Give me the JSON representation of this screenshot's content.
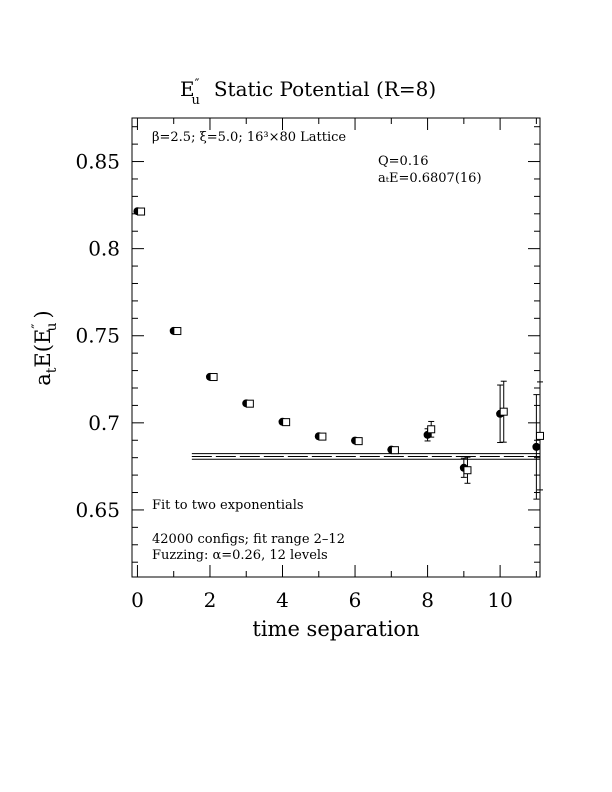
{
  "chart_data": {
    "type": "scatter",
    "title": "E″u  Static Potential (R=8)",
    "title_parts": {
      "symbol": "E",
      "superscript": "″",
      "subscript": "u",
      "rest": "Static Potential (R=8)"
    },
    "xlabel": "time separation",
    "ylabel": "aₜ E(E″u )",
    "ylabel_parts": {
      "prefix": "a",
      "prefix_sub": "t",
      "main": "E(E",
      "sup": "″",
      "sub": "u",
      "suffix": ")"
    },
    "xlim": [
      -0.15,
      11.1
    ],
    "ylim": [
      0.6115,
      0.875
    ],
    "x_ticks": [
      0,
      2,
      4,
      6,
      8,
      10
    ],
    "x_tick_labels": [
      "0",
      "2",
      "4",
      "6",
      "8",
      "10"
    ],
    "y_ticks": [
      0.65,
      0.7,
      0.75,
      0.8,
      0.85
    ],
    "y_tick_labels": [
      "0.65",
      "0.7",
      "0.75",
      "0.8",
      "0.85"
    ],
    "grid": false,
    "series": [
      {
        "marker": "filled-circle",
        "x": [
          0,
          1,
          2,
          3,
          4,
          5,
          6,
          7,
          8,
          9,
          10,
          11
        ],
        "y": [
          0.8215,
          0.7528,
          0.7264,
          0.7112,
          0.7006,
          0.6923,
          0.6898,
          0.6846,
          0.6931,
          0.6742,
          0.7052,
          0.6862
        ],
        "err": [
          0.0003,
          0.0004,
          0.0005,
          0.0006,
          0.0007,
          0.0008,
          0.0009,
          0.0015,
          0.0035,
          0.0055,
          0.0165,
          0.03
        ]
      },
      {
        "marker": "open-square",
        "x": [
          0.1,
          1.1,
          2.1,
          3.1,
          4.1,
          5.1,
          6.1,
          7.1,
          8.1,
          9.1,
          10.1,
          11.1
        ],
        "y": [
          0.8213,
          0.7527,
          0.7263,
          0.711,
          0.7004,
          0.6921,
          0.6895,
          0.6843,
          0.6963,
          0.6728,
          0.7064,
          0.6925
        ],
        "err": [
          0.0003,
          0.0004,
          0.0005,
          0.0006,
          0.0007,
          0.0008,
          0.0009,
          0.0015,
          0.0045,
          0.0075,
          0.0175,
          0.031
        ]
      }
    ],
    "fit": {
      "x_range": [
        1.5,
        11.1
      ],
      "value": 0.6807,
      "error": 0.0016
    },
    "annotations": {
      "lattice": "β=2.5; ξ=5.0; 16³×80 Lattice",
      "q_value": "Q=0.16",
      "energy": "aₜE=0.6807(16)",
      "fit_desc": "Fit to two exponentials",
      "configs": "42000 configs; fit range 2–12",
      "fuzzing": "Fuzzing: α=0.26, 12 levels"
    }
  }
}
